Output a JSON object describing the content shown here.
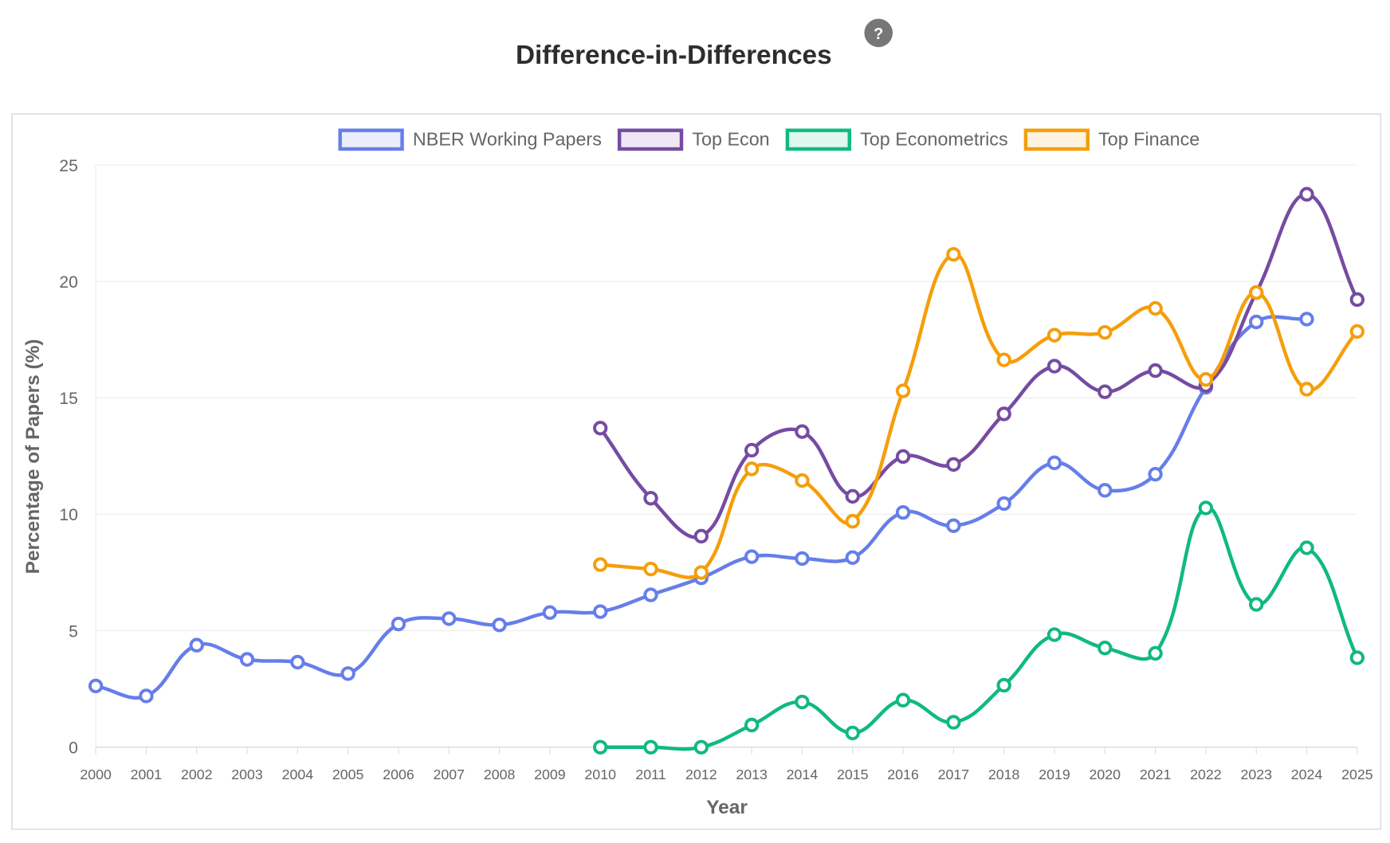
{
  "header": {
    "title": "Difference-in-Differences",
    "help_icon": "question-mark-icon",
    "help_label": "?"
  },
  "chart_data": {
    "type": "line",
    "title": "",
    "xlabel": "Year",
    "ylabel": "Percentage of Papers (%)",
    "ylim": [
      0,
      25
    ],
    "yticks": [
      0,
      5,
      10,
      15,
      20,
      25
    ],
    "grid": true,
    "legend_placement": "top",
    "x": [
      2000,
      2001,
      2002,
      2003,
      2004,
      2005,
      2006,
      2007,
      2008,
      2009,
      2010,
      2011,
      2012,
      2013,
      2014,
      2015,
      2016,
      2017,
      2018,
      2019,
      2020,
      2021,
      2022,
      2023,
      2024,
      2025
    ],
    "series": [
      {
        "name": "NBER Working Papers",
        "color": "#667eea",
        "fill": "#eaeefc",
        "values": [
          2.63,
          2.2,
          4.38,
          3.77,
          3.65,
          3.16,
          5.29,
          5.52,
          5.25,
          5.78,
          5.82,
          6.54,
          7.27,
          8.18,
          8.1,
          8.14,
          10.08,
          9.51,
          10.46,
          12.21,
          11.03,
          11.72,
          15.45,
          18.26,
          18.38,
          null
        ]
      },
      {
        "name": "Top Econ",
        "color": "#764ba2",
        "fill": "#efe8f4",
        "values": [
          null,
          null,
          null,
          null,
          null,
          null,
          null,
          null,
          null,
          null,
          13.7,
          10.69,
          9.06,
          12.75,
          13.55,
          10.77,
          12.48,
          12.14,
          14.31,
          16.36,
          15.26,
          16.17,
          15.53,
          19.52,
          23.74,
          19.22
        ]
      },
      {
        "name": "Top Econometrics",
        "color": "#10b981",
        "fill": "#e0f6ee",
        "values": [
          null,
          null,
          null,
          null,
          null,
          null,
          null,
          null,
          null,
          null,
          0,
          0,
          0,
          0.95,
          1.94,
          0.61,
          2.02,
          1.07,
          2.66,
          4.83,
          4.26,
          4.03,
          10.27,
          6.13,
          8.56,
          3.84
        ]
      },
      {
        "name": "Top Finance",
        "color": "#f59e0b",
        "fill": "#fef3e0",
        "values": [
          null,
          null,
          null,
          null,
          null,
          null,
          null,
          null,
          null,
          null,
          7.84,
          7.65,
          7.5,
          11.95,
          11.45,
          9.7,
          15.3,
          21.16,
          16.63,
          17.69,
          17.81,
          18.84,
          15.79,
          19.52,
          15.37,
          17.85
        ]
      }
    ]
  }
}
